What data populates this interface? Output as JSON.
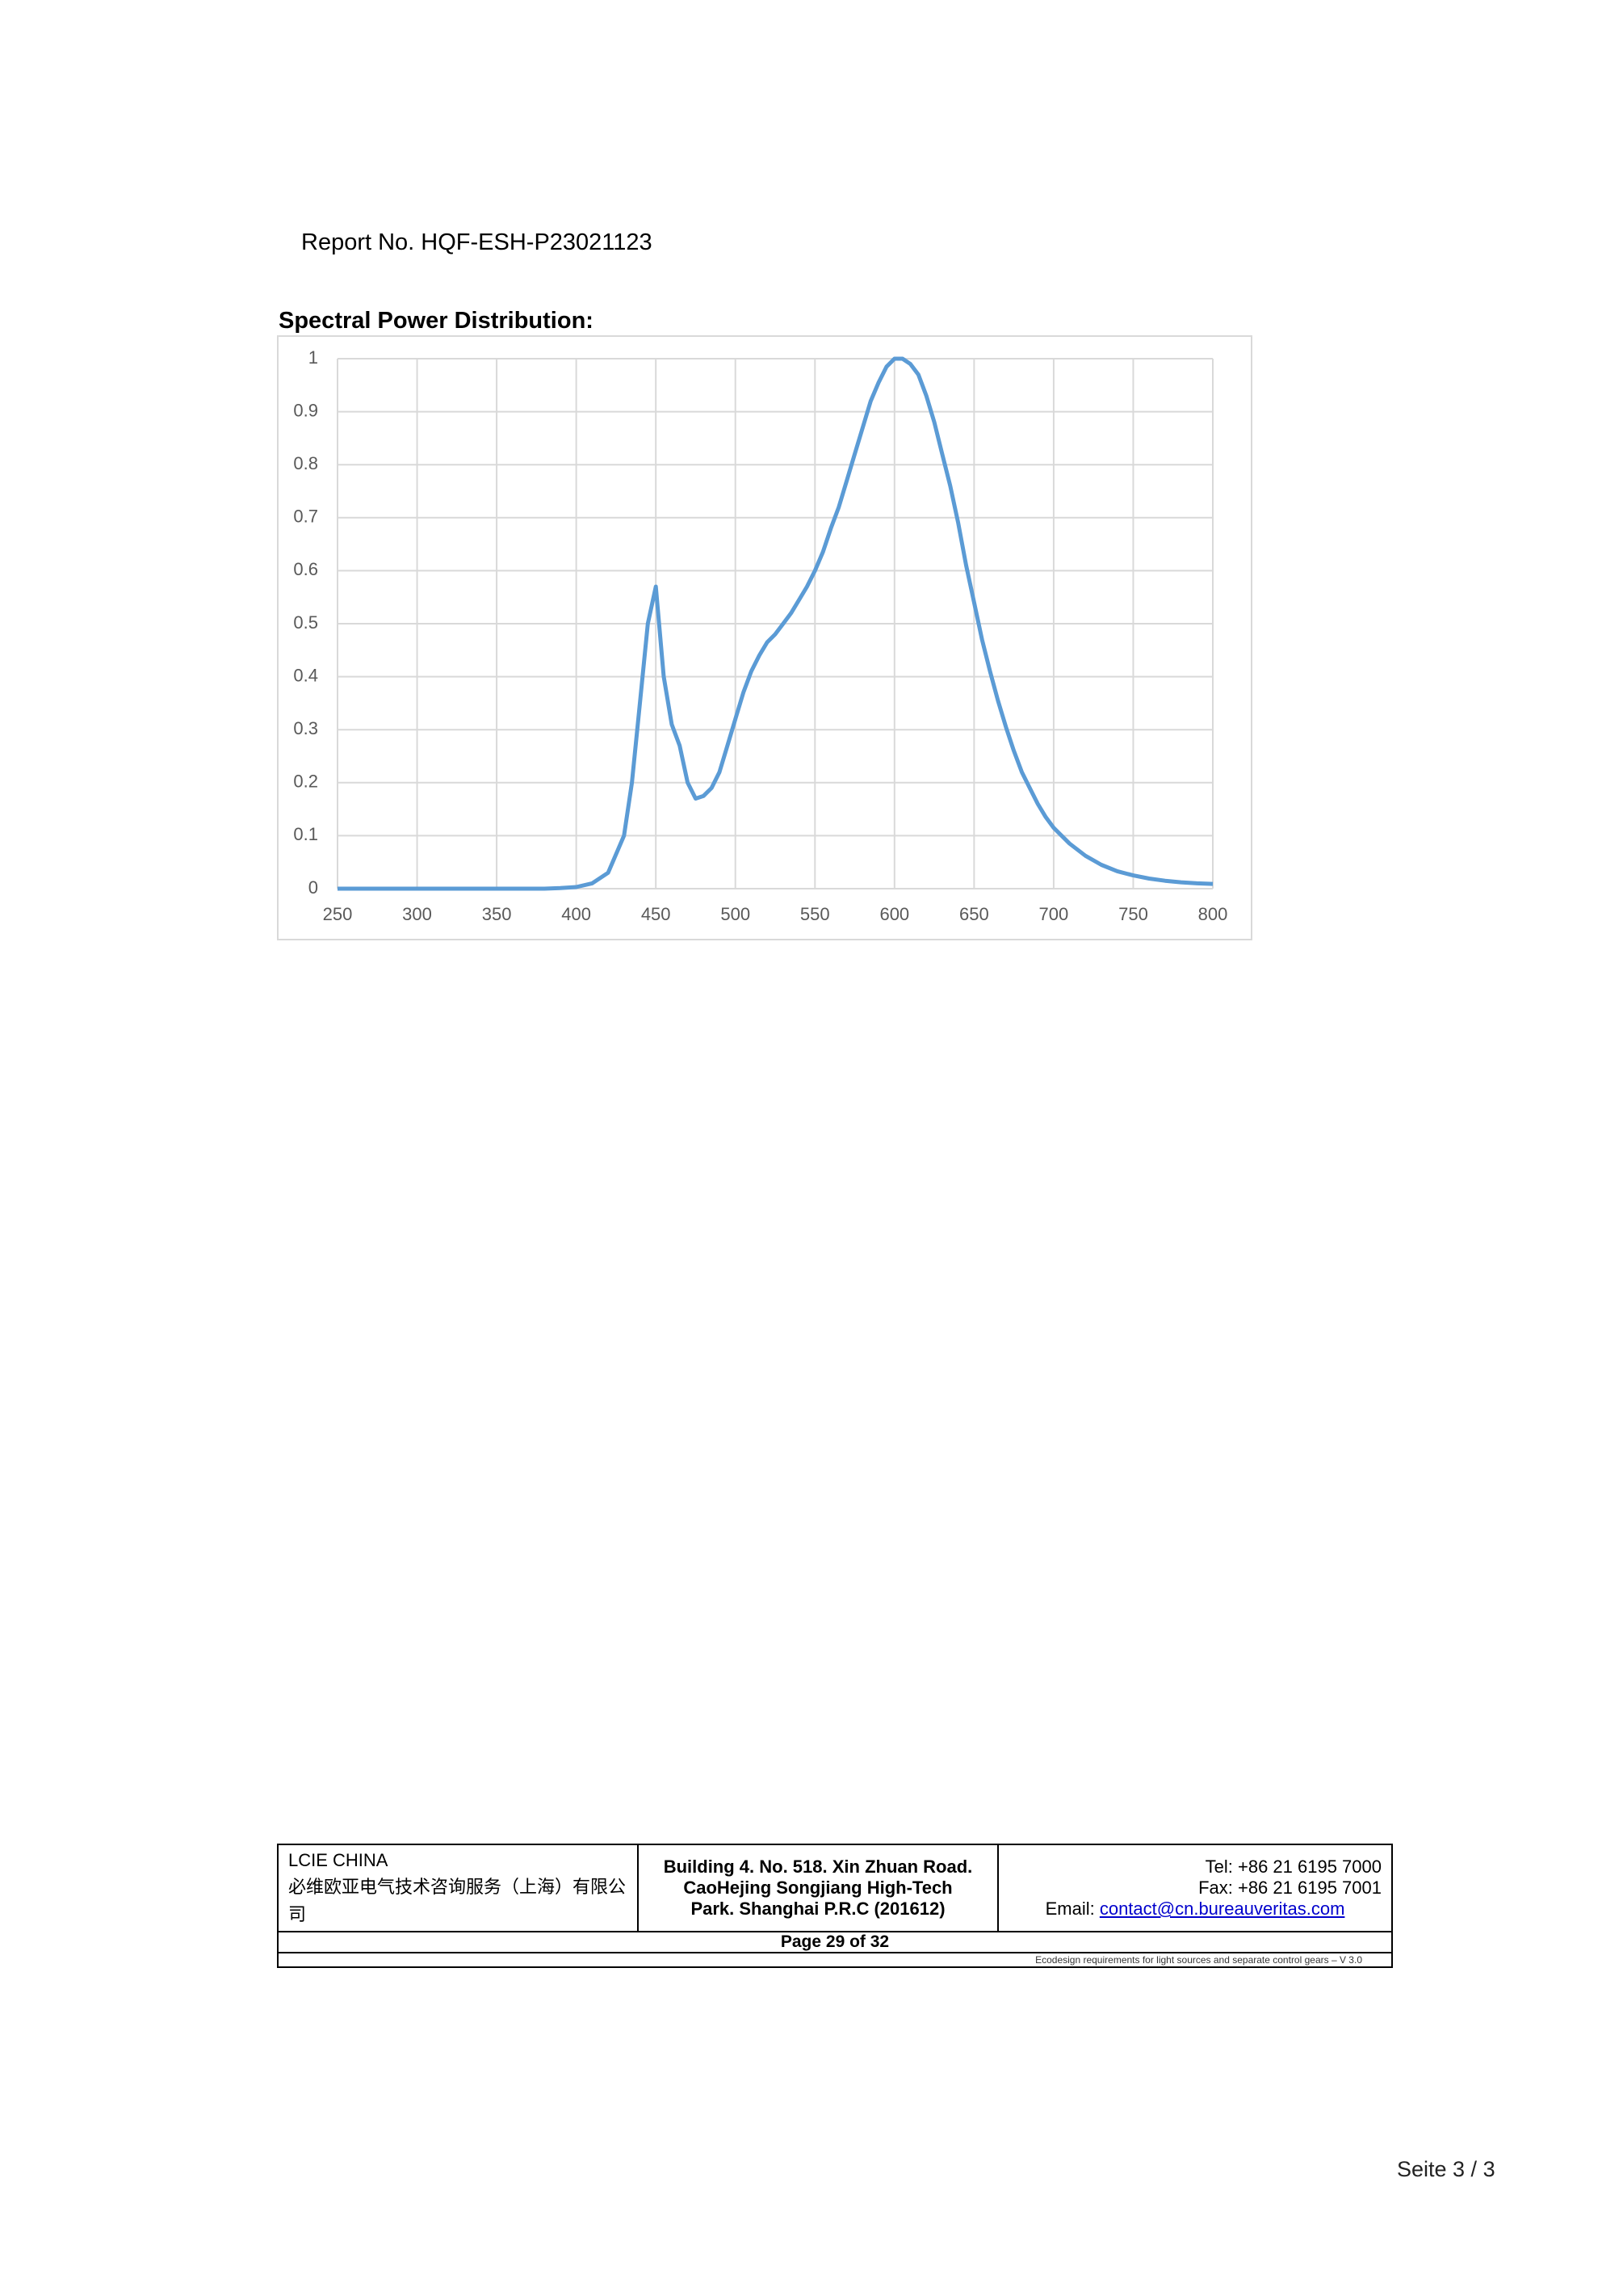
{
  "header": {
    "report_no": "Report No. HQF-ESH-P23021123",
    "section_title": "Spectral Power Distribution:"
  },
  "chart_data": {
    "type": "line",
    "color": "#5b9bd5",
    "grid": true,
    "x": [
      250,
      300,
      350,
      380,
      390,
      400,
      410,
      420,
      430,
      435,
      440,
      445,
      450,
      455,
      460,
      465,
      470,
      475,
      480,
      485,
      490,
      495,
      500,
      505,
      510,
      515,
      520,
      525,
      530,
      535,
      540,
      545,
      550,
      555,
      560,
      565,
      570,
      575,
      580,
      585,
      590,
      595,
      600,
      605,
      610,
      615,
      620,
      625,
      630,
      635,
      640,
      645,
      650,
      655,
      660,
      665,
      670,
      675,
      680,
      685,
      690,
      695,
      700,
      710,
      720,
      730,
      740,
      750,
      760,
      770,
      780,
      790,
      800
    ],
    "values": [
      0,
      0,
      0,
      0,
      0.001,
      0.003,
      0.01,
      0.03,
      0.1,
      0.2,
      0.35,
      0.5,
      0.57,
      0.4,
      0.31,
      0.27,
      0.2,
      0.17,
      0.175,
      0.19,
      0.22,
      0.27,
      0.32,
      0.37,
      0.41,
      0.44,
      0.465,
      0.48,
      0.5,
      0.52,
      0.545,
      0.57,
      0.6,
      0.635,
      0.68,
      0.72,
      0.77,
      0.82,
      0.87,
      0.92,
      0.955,
      0.985,
      1.0,
      1.0,
      0.99,
      0.97,
      0.93,
      0.88,
      0.82,
      0.76,
      0.69,
      0.61,
      0.54,
      0.47,
      0.41,
      0.355,
      0.305,
      0.26,
      0.22,
      0.19,
      0.16,
      0.135,
      0.115,
      0.085,
      0.062,
      0.045,
      0.033,
      0.025,
      0.019,
      0.015,
      0.012,
      0.01,
      0.009
    ],
    "xlim": [
      250,
      800
    ],
    "ylim": [
      0,
      1
    ],
    "xticks": [
      250,
      300,
      350,
      400,
      450,
      500,
      550,
      600,
      650,
      700,
      750,
      800
    ],
    "yticks": [
      0,
      0.1,
      0.2,
      0.3,
      0.4,
      0.5,
      0.6,
      0.7,
      0.8,
      0.9,
      1
    ]
  },
  "footer": {
    "company": "LCIE CHINA",
    "company_cn": "必维欧亚电气技术咨询服务（上海）有限公司",
    "address": [
      "Building 4. No. 518. Xin Zhuan Road.",
      "CaoHejing Songjiang High-Tech",
      "Park. Shanghai P.R.C (201612)"
    ],
    "tel": "Tel: +86 21 6195 7000",
    "fax": "Fax: +86 21 6195 7001",
    "email_label": "Email: ",
    "email": "contact@cn.bureauveritas.com",
    "page": "Page 29 of 32",
    "note": "Ecodesign requirements for light sources and separate control gears – V 3.0"
  },
  "page_label": "Seite 3 / 3"
}
